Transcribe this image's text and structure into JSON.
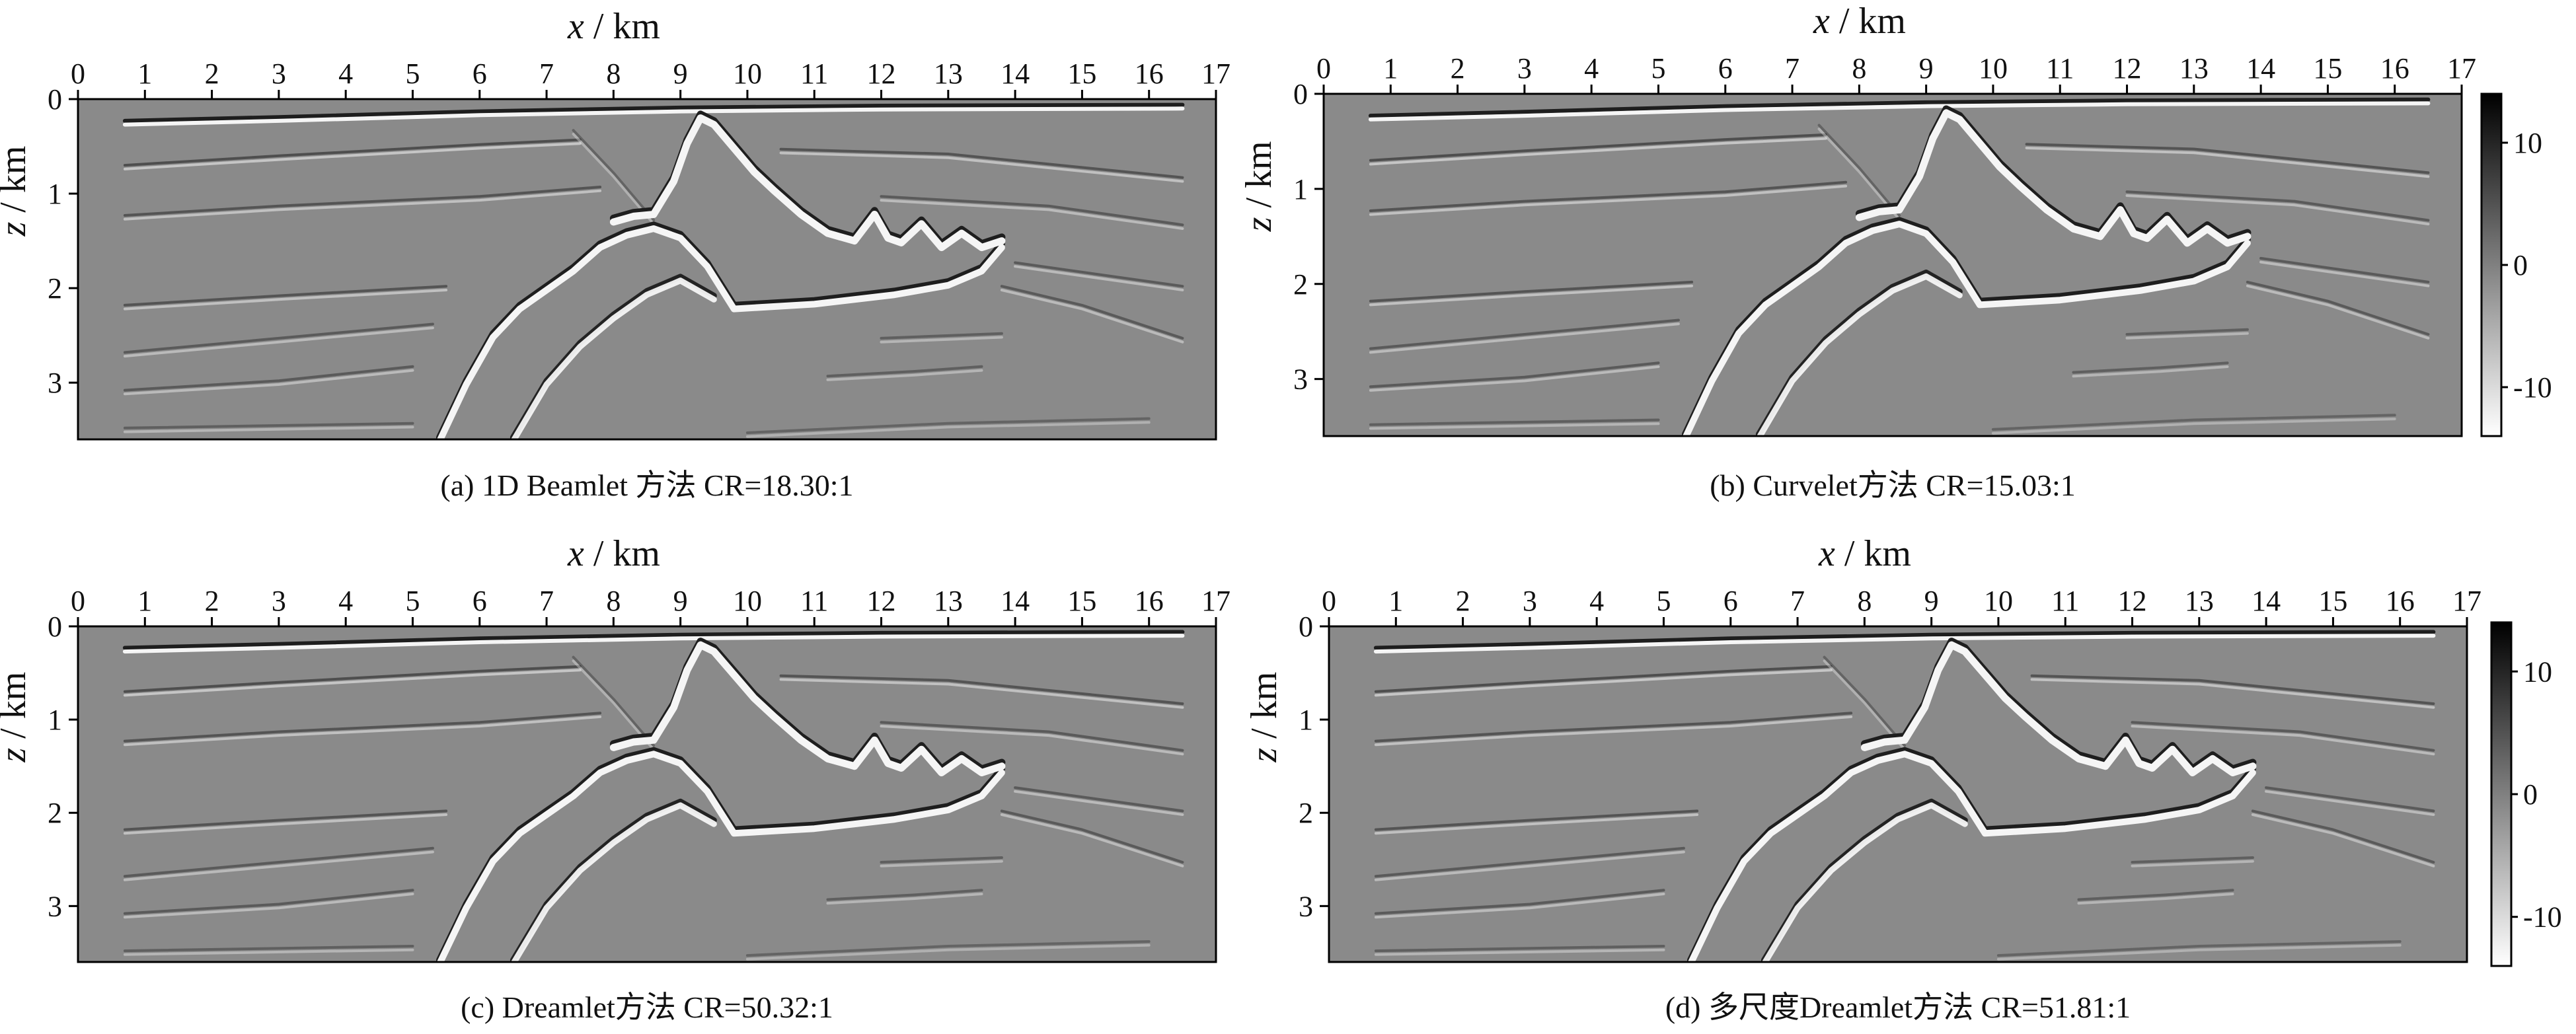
{
  "figure": {
    "panels_count": 4,
    "colorbar": {
      "ticks": [
        {
          "value": 10,
          "label": "10"
        },
        {
          "value": 0,
          "label": "0"
        },
        {
          "value": -10,
          "label": "-10"
        }
      ],
      "range": [
        -14,
        14
      ],
      "colormap": "gray (black = positive, white = negative)"
    }
  },
  "chart_data": [
    {
      "id": "a",
      "type": "heatmap",
      "caption": "(a) 1D Beamlet 方法 CR=18.30:1",
      "method": "1D Beamlet",
      "compression_ratio": "18.30:1",
      "xlabel": "x / km",
      "ylabel": "z / km",
      "x_ticks": [
        0,
        1,
        2,
        3,
        4,
        5,
        6,
        7,
        8,
        9,
        10,
        11,
        12,
        13,
        14,
        15,
        16,
        17
      ],
      "y_ticks": [
        0,
        1,
        2,
        3
      ],
      "xlim": [
        0,
        17
      ],
      "ylim": [
        0,
        3.6
      ],
      "colorbar": false,
      "description": "Migrated seismic image of a salt body with crest near x=9.3 km, z=0.2 km"
    },
    {
      "id": "b",
      "type": "heatmap",
      "caption": "(b) Curvelet方法 CR=15.03:1",
      "method": "Curvelet",
      "compression_ratio": "15.03:1",
      "xlabel": "x / km",
      "ylabel": "z / km",
      "x_ticks": [
        0,
        1,
        2,
        3,
        4,
        5,
        6,
        7,
        8,
        9,
        10,
        11,
        12,
        13,
        14,
        15,
        16,
        17
      ],
      "y_ticks": [
        0,
        1,
        2,
        3
      ],
      "xlim": [
        0,
        17
      ],
      "ylim": [
        0,
        3.6
      ],
      "colorbar": true,
      "description": "Migrated seismic image of a salt body with crest near x=9.3 km, z=0.2 km"
    },
    {
      "id": "c",
      "type": "heatmap",
      "caption": "(c) Dreamlet方法 CR=50.32:1",
      "method": "Dreamlet",
      "compression_ratio": "50.32:1",
      "xlabel": "x / km",
      "ylabel": "z / km",
      "x_ticks": [
        0,
        1,
        2,
        3,
        4,
        5,
        6,
        7,
        8,
        9,
        10,
        11,
        12,
        13,
        14,
        15,
        16,
        17
      ],
      "y_ticks": [
        0,
        1,
        2,
        3
      ],
      "xlim": [
        0,
        17
      ],
      "ylim": [
        0,
        3.6
      ],
      "colorbar": false,
      "description": "Migrated seismic image of a salt body with crest near x=9.3 km, z=0.2 km"
    },
    {
      "id": "d",
      "type": "heatmap",
      "caption": "(d) 多尺度Dreamlet方法 CR=51.81:1",
      "method": "多尺度Dreamlet",
      "compression_ratio": "51.81:1",
      "xlabel": "x / km",
      "ylabel": "z / km",
      "x_ticks": [
        0,
        1,
        2,
        3,
        4,
        5,
        6,
        7,
        8,
        9,
        10,
        11,
        12,
        13,
        14,
        15,
        16,
        17
      ],
      "y_ticks": [
        0,
        1,
        2,
        3
      ],
      "xlim": [
        0,
        17
      ],
      "ylim": [
        0,
        3.6
      ],
      "colorbar": true,
      "description": "Migrated seismic image of a salt body with crest near x=9.3 km, z=0.2 km"
    }
  ],
  "structures": {
    "salt_top_x": [
      8.0,
      8.3,
      8.6,
      8.9,
      9.1,
      9.3,
      9.5,
      9.8,
      10.1,
      10.4,
      10.8,
      11.2,
      11.6,
      11.9,
      12.1,
      12.3,
      12.6,
      12.9,
      13.2,
      13.5,
      13.8
    ],
    "salt_top_z": [
      1.28,
      1.22,
      1.2,
      0.85,
      0.45,
      0.18,
      0.25,
      0.5,
      0.75,
      0.95,
      1.2,
      1.4,
      1.48,
      1.2,
      1.45,
      1.5,
      1.3,
      1.55,
      1.4,
      1.55,
      1.48
    ],
    "salt_bottom_x": [
      5.4,
      5.8,
      6.2,
      6.6,
      7.0,
      7.4,
      7.8,
      8.2,
      8.6,
      9.0,
      9.4,
      9.8,
      11.0,
      12.2,
      13.0,
      13.5,
      13.8
    ],
    "salt_bottom_z": [
      3.6,
      3.0,
      2.5,
      2.2,
      2.0,
      1.8,
      1.55,
      1.42,
      1.35,
      1.45,
      1.75,
      2.2,
      2.15,
      2.05,
      1.95,
      1.8,
      1.55
    ],
    "base_x": [
      6.5,
      7.0,
      7.5,
      8.0,
      8.5,
      9.0,
      9.5
    ],
    "base_z": [
      3.6,
      3.0,
      2.6,
      2.3,
      2.05,
      1.9,
      2.1
    ],
    "seafloor_x": [
      0.7,
      3.0,
      6.0,
      9.0,
      12.0,
      16.5
    ],
    "seafloor_z": [
      0.25,
      0.21,
      0.15,
      0.11,
      0.09,
      0.08
    ],
    "reflectors": [
      {
        "x": [
          0.7,
          3.0,
          6.0,
          7.5
        ],
        "z": [
          0.72,
          0.62,
          0.5,
          0.45
        ],
        "strength": 0.55
      },
      {
        "x": [
          0.7,
          3.0,
          6.0,
          7.8
        ],
        "z": [
          1.25,
          1.15,
          1.05,
          0.95
        ],
        "strength": 0.5
      },
      {
        "x": [
          0.7,
          3.0,
          5.5
        ],
        "z": [
          2.2,
          2.1,
          2.0
        ],
        "strength": 0.5
      },
      {
        "x": [
          0.7,
          3.0,
          5.3
        ],
        "z": [
          2.7,
          2.55,
          2.4
        ],
        "strength": 0.45
      },
      {
        "x": [
          0.7,
          3.0,
          5.0
        ],
        "z": [
          3.1,
          3.0,
          2.85
        ],
        "strength": 0.45
      },
      {
        "x": [
          0.7,
          5.0
        ],
        "z": [
          3.5,
          3.45
        ],
        "strength": 0.4
      },
      {
        "x": [
          10.5,
          13.0,
          16.5
        ],
        "z": [
          0.55,
          0.6,
          0.85
        ],
        "strength": 0.5
      },
      {
        "x": [
          12.0,
          14.5,
          16.5
        ],
        "z": [
          1.05,
          1.15,
          1.35
        ],
        "strength": 0.45
      },
      {
        "x": [
          14.0,
          15.0,
          16.5
        ],
        "z": [
          1.75,
          1.85,
          2.0
        ],
        "strength": 0.45
      },
      {
        "x": [
          13.8,
          15.0,
          16.5
        ],
        "z": [
          2.0,
          2.2,
          2.55
        ],
        "strength": 0.45
      },
      {
        "x": [
          11.2,
          12.5,
          13.5
        ],
        "z": [
          2.95,
          2.9,
          2.85
        ],
        "strength": 0.4
      },
      {
        "x": [
          12.0,
          13.8
        ],
        "z": [
          2.55,
          2.5
        ],
        "strength": 0.4
      },
      {
        "x": [
          10.0,
          11.5,
          13.0,
          16.0
        ],
        "z": [
          3.55,
          3.5,
          3.45,
          3.4
        ],
        "strength": 0.35
      },
      {
        "x": [
          7.4,
          8.0,
          8.6
        ],
        "z": [
          0.35,
          0.8,
          1.3
        ],
        "strength": 0.35
      }
    ]
  }
}
